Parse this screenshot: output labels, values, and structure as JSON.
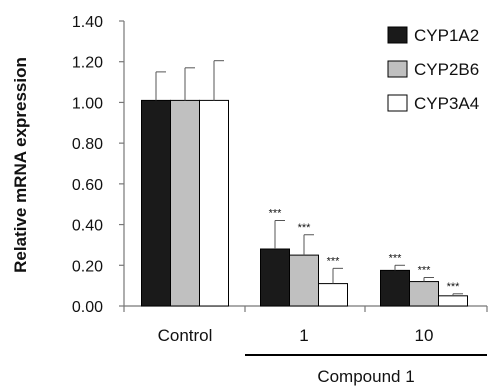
{
  "chart_data": {
    "type": "bar",
    "ylabel": "Relative mRNA expression",
    "xlabel": "",
    "ylim": [
      0,
      1.4
    ],
    "y_ticks": [
      "0.00",
      "0.20",
      "0.40",
      "0.60",
      "0.80",
      "1.00",
      "1.20",
      "1.40"
    ],
    "categories": [
      "Control",
      "1",
      "10"
    ],
    "group_label": "Compound 1",
    "legend_position": "top-right",
    "grid": false,
    "series": [
      {
        "name": "CYP1A2",
        "color": "#1a1a1a",
        "values": [
          1.01,
          0.28,
          0.175
        ],
        "errors": [
          0.14,
          0.14,
          0.025
        ],
        "significance": [
          "",
          "***",
          "***"
        ]
      },
      {
        "name": "CYP2B6",
        "color": "#c0c0c0",
        "values": [
          1.01,
          0.25,
          0.12
        ],
        "errors": [
          0.16,
          0.1,
          0.02
        ],
        "significance": [
          "",
          "***",
          "***"
        ]
      },
      {
        "name": "CYP3A4",
        "color": "#ffffff",
        "values": [
          1.01,
          0.11,
          0.05
        ],
        "errors": [
          0.195,
          0.075,
          0.01
        ],
        "significance": [
          "",
          "***",
          "***"
        ]
      }
    ]
  }
}
